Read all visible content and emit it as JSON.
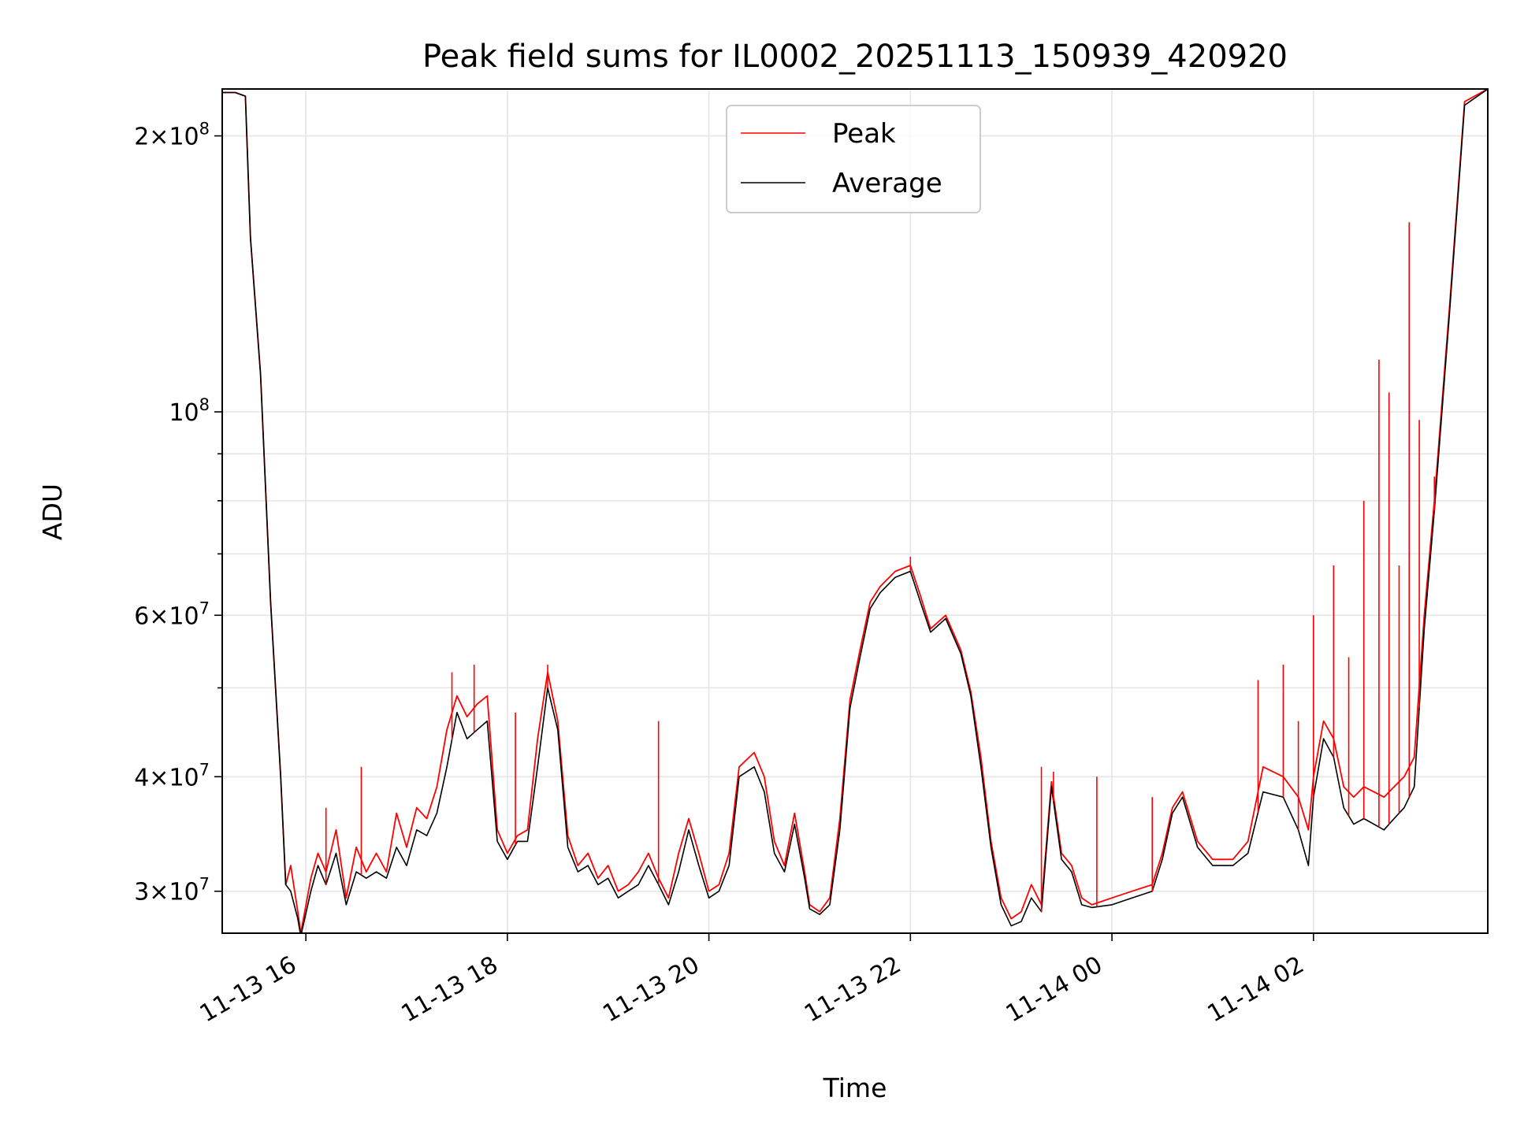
{
  "chart_data": {
    "type": "line",
    "title": "Peak field sums for IL0002_20251113_150939_420920",
    "xlabel": "Time",
    "ylabel": "ADU",
    "y_scale": "log",
    "ylim": [
      27000000,
      225000000
    ],
    "xlim_hours": [
      -0.83,
      11.73
    ],
    "x_start_date": "2025-11-13",
    "grid": true,
    "legend_position": "top-center",
    "x_tick_labels": [
      "11-13 16",
      "11-13 18",
      "11-13 20",
      "11-13 22",
      "11-14 00",
      "11-14 02"
    ],
    "x_tick_hours": [
      0,
      2,
      4,
      6,
      8,
      10
    ],
    "y_major_ticks": [
      {
        "value": 30000000,
        "mantissa": "3",
        "exp": "7"
      },
      {
        "value": 40000000,
        "mantissa": "4",
        "exp": "7"
      },
      {
        "value": 60000000,
        "mantissa": "6",
        "exp": "7"
      },
      {
        "value": 100000000,
        "mantissa": "",
        "exp": "8"
      },
      {
        "value": 200000000,
        "mantissa": "2",
        "exp": "8"
      }
    ],
    "y_minor_ticks": [
      50000000,
      70000000,
      80000000,
      90000000
    ],
    "series": [
      {
        "name": "Peak",
        "color": "#ff0000",
        "values": [
          [
            -0.83,
            223000000
          ],
          [
            -0.7,
            223000000
          ],
          [
            -0.6,
            221000000
          ],
          [
            -0.55,
            155000000
          ],
          [
            -0.45,
            110000000
          ],
          [
            -0.35,
            62000000
          ],
          [
            -0.25,
            40000000
          ],
          [
            -0.2,
            30500000
          ],
          [
            -0.15,
            32000000
          ],
          [
            -0.08,
            28500000
          ],
          [
            -0.05,
            27000000
          ],
          [
            0.05,
            31000000
          ],
          [
            0.12,
            33000000
          ],
          [
            0.2,
            31500000
          ],
          [
            0.3,
            35000000
          ],
          [
            0.4,
            29500000
          ],
          [
            0.5,
            33500000
          ],
          [
            0.6,
            31500000
          ],
          [
            0.7,
            33000000
          ],
          [
            0.8,
            31500000
          ],
          [
            0.9,
            36500000
          ],
          [
            1.0,
            33500000
          ],
          [
            1.1,
            37000000
          ],
          [
            1.2,
            36000000
          ],
          [
            1.3,
            39000000
          ],
          [
            1.4,
            45000000
          ],
          [
            1.5,
            49000000
          ],
          [
            1.6,
            46500000
          ],
          [
            1.7,
            48000000
          ],
          [
            1.8,
            49000000
          ],
          [
            1.9,
            35000000
          ],
          [
            2.0,
            33000000
          ],
          [
            2.1,
            34500000
          ],
          [
            2.2,
            35000000
          ],
          [
            2.3,
            44000000
          ],
          [
            2.4,
            52000000
          ],
          [
            2.5,
            46000000
          ],
          [
            2.6,
            34500000
          ],
          [
            2.7,
            32000000
          ],
          [
            2.8,
            33000000
          ],
          [
            2.9,
            31000000
          ],
          [
            3.0,
            32000000
          ],
          [
            3.1,
            30000000
          ],
          [
            3.2,
            30500000
          ],
          [
            3.3,
            31500000
          ],
          [
            3.4,
            33000000
          ],
          [
            3.5,
            31000000
          ],
          [
            3.6,
            29500000
          ],
          [
            3.7,
            33000000
          ],
          [
            3.8,
            36000000
          ],
          [
            3.9,
            33000000
          ],
          [
            4.0,
            30000000
          ],
          [
            4.1,
            30500000
          ],
          [
            4.2,
            33000000
          ],
          [
            4.3,
            41000000
          ],
          [
            4.45,
            42500000
          ],
          [
            4.55,
            40000000
          ],
          [
            4.65,
            34000000
          ],
          [
            4.75,
            32000000
          ],
          [
            4.85,
            36500000
          ],
          [
            4.95,
            31500000
          ],
          [
            5.0,
            29000000
          ],
          [
            5.1,
            28500000
          ],
          [
            5.2,
            29500000
          ],
          [
            5.3,
            36000000
          ],
          [
            5.4,
            48500000
          ],
          [
            5.5,
            55000000
          ],
          [
            5.6,
            62000000
          ],
          [
            5.7,
            64500000
          ],
          [
            5.85,
            67000000
          ],
          [
            6.0,
            68000000
          ],
          [
            6.1,
            63000000
          ],
          [
            6.2,
            58000000
          ],
          [
            6.35,
            60000000
          ],
          [
            6.5,
            55000000
          ],
          [
            6.6,
            49500000
          ],
          [
            6.7,
            42000000
          ],
          [
            6.8,
            34000000
          ],
          [
            6.9,
            29500000
          ],
          [
            7.0,
            28000000
          ],
          [
            7.1,
            28500000
          ],
          [
            7.2,
            30500000
          ],
          [
            7.3,
            29000000
          ],
          [
            7.4,
            39500000
          ],
          [
            7.5,
            33000000
          ],
          [
            7.6,
            32000000
          ],
          [
            7.7,
            29500000
          ],
          [
            7.8,
            29000000
          ],
          [
            8.0,
            29500000
          ],
          [
            8.2,
            30000000
          ],
          [
            8.4,
            30500000
          ],
          [
            8.5,
            33000000
          ],
          [
            8.6,
            37000000
          ],
          [
            8.7,
            38500000
          ],
          [
            8.85,
            34000000
          ],
          [
            9.0,
            32500000
          ],
          [
            9.2,
            32500000
          ],
          [
            9.35,
            34000000
          ],
          [
            9.5,
            41000000
          ],
          [
            9.7,
            40000000
          ],
          [
            9.85,
            38000000
          ],
          [
            9.95,
            35000000
          ],
          [
            10.0,
            40000000
          ],
          [
            10.1,
            46000000
          ],
          [
            10.2,
            44000000
          ],
          [
            10.3,
            39000000
          ],
          [
            10.4,
            38000000
          ],
          [
            10.5,
            39000000
          ],
          [
            10.6,
            38500000
          ],
          [
            10.7,
            38000000
          ],
          [
            10.8,
            39000000
          ],
          [
            10.9,
            40000000
          ],
          [
            11.0,
            42000000
          ],
          [
            11.1,
            60000000
          ],
          [
            11.2,
            80000000
          ],
          [
            11.35,
            130000000
          ],
          [
            11.5,
            218000000
          ],
          [
            11.73,
            225000000
          ]
        ]
      },
      {
        "name": "Average",
        "color": "#000000",
        "values": [
          [
            -0.83,
            223000000
          ],
          [
            -0.7,
            223000000
          ],
          [
            -0.6,
            221000000
          ],
          [
            -0.55,
            155000000
          ],
          [
            -0.45,
            110000000
          ],
          [
            -0.35,
            62000000
          ],
          [
            -0.25,
            40000000
          ],
          [
            -0.2,
            30500000
          ],
          [
            -0.15,
            30000000
          ],
          [
            -0.08,
            28000000
          ],
          [
            -0.05,
            26800000
          ],
          [
            0.05,
            30000000
          ],
          [
            0.12,
            32000000
          ],
          [
            0.2,
            30500000
          ],
          [
            0.3,
            33000000
          ],
          [
            0.4,
            29000000
          ],
          [
            0.5,
            31500000
          ],
          [
            0.6,
            31000000
          ],
          [
            0.7,
            31500000
          ],
          [
            0.8,
            31000000
          ],
          [
            0.9,
            33500000
          ],
          [
            1.0,
            32000000
          ],
          [
            1.1,
            35000000
          ],
          [
            1.2,
            34500000
          ],
          [
            1.3,
            36500000
          ],
          [
            1.4,
            41000000
          ],
          [
            1.5,
            47000000
          ],
          [
            1.6,
            44000000
          ],
          [
            1.7,
            45000000
          ],
          [
            1.8,
            46000000
          ],
          [
            1.9,
            34000000
          ],
          [
            2.0,
            32500000
          ],
          [
            2.1,
            34000000
          ],
          [
            2.2,
            34000000
          ],
          [
            2.3,
            41000000
          ],
          [
            2.4,
            50000000
          ],
          [
            2.5,
            45000000
          ],
          [
            2.6,
            33500000
          ],
          [
            2.7,
            31500000
          ],
          [
            2.8,
            32000000
          ],
          [
            2.9,
            30500000
          ],
          [
            3.0,
            31000000
          ],
          [
            3.1,
            29500000
          ],
          [
            3.2,
            30000000
          ],
          [
            3.3,
            30500000
          ],
          [
            3.4,
            32000000
          ],
          [
            3.5,
            30500000
          ],
          [
            3.6,
            29000000
          ],
          [
            3.7,
            31500000
          ],
          [
            3.8,
            35000000
          ],
          [
            3.9,
            32000000
          ],
          [
            4.0,
            29500000
          ],
          [
            4.1,
            30000000
          ],
          [
            4.2,
            32000000
          ],
          [
            4.3,
            40000000
          ],
          [
            4.45,
            41000000
          ],
          [
            4.55,
            38500000
          ],
          [
            4.65,
            33000000
          ],
          [
            4.75,
            31500000
          ],
          [
            4.85,
            35500000
          ],
          [
            4.95,
            31000000
          ],
          [
            5.0,
            28700000
          ],
          [
            5.1,
            28300000
          ],
          [
            5.2,
            29000000
          ],
          [
            5.3,
            35000000
          ],
          [
            5.4,
            47500000
          ],
          [
            5.5,
            54000000
          ],
          [
            5.6,
            61000000
          ],
          [
            5.7,
            63500000
          ],
          [
            5.85,
            66000000
          ],
          [
            6.0,
            67000000
          ],
          [
            6.1,
            62000000
          ],
          [
            6.2,
            57500000
          ],
          [
            6.35,
            59500000
          ],
          [
            6.5,
            54500000
          ],
          [
            6.6,
            49000000
          ],
          [
            6.7,
            41000000
          ],
          [
            6.8,
            33500000
          ],
          [
            6.9,
            29000000
          ],
          [
            7.0,
            27500000
          ],
          [
            7.1,
            27800000
          ],
          [
            7.2,
            29500000
          ],
          [
            7.3,
            28500000
          ],
          [
            7.4,
            39000000
          ],
          [
            7.5,
            32500000
          ],
          [
            7.6,
            31500000
          ],
          [
            7.7,
            29000000
          ],
          [
            7.8,
            28800000
          ],
          [
            8.0,
            29000000
          ],
          [
            8.2,
            29500000
          ],
          [
            8.4,
            30000000
          ],
          [
            8.5,
            32500000
          ],
          [
            8.6,
            36500000
          ],
          [
            8.7,
            38000000
          ],
          [
            8.85,
            33500000
          ],
          [
            9.0,
            32000000
          ],
          [
            9.2,
            32000000
          ],
          [
            9.35,
            33000000
          ],
          [
            9.5,
            38500000
          ],
          [
            9.7,
            38000000
          ],
          [
            9.85,
            35000000
          ],
          [
            9.95,
            32000000
          ],
          [
            10.0,
            38000000
          ],
          [
            10.1,
            44000000
          ],
          [
            10.2,
            42000000
          ],
          [
            10.3,
            37000000
          ],
          [
            10.4,
            35500000
          ],
          [
            10.5,
            36000000
          ],
          [
            10.6,
            35500000
          ],
          [
            10.7,
            35000000
          ],
          [
            10.8,
            36000000
          ],
          [
            10.9,
            37000000
          ],
          [
            11.0,
            39000000
          ],
          [
            11.1,
            58000000
          ],
          [
            11.2,
            78000000
          ],
          [
            11.35,
            128000000
          ],
          [
            11.5,
            216000000
          ],
          [
            11.73,
            225000000
          ]
        ]
      }
    ],
    "spikes": [
      [
        0.2,
        37000000
      ],
      [
        0.55,
        41000000
      ],
      [
        1.45,
        52000000
      ],
      [
        1.67,
        53000000
      ],
      [
        2.08,
        47000000
      ],
      [
        2.4,
        53000000
      ],
      [
        3.5,
        46000000
      ],
      [
        6.0,
        69500000
      ],
      [
        7.3,
        41000000
      ],
      [
        7.42,
        40500000
      ],
      [
        7.85,
        40000000
      ],
      [
        8.4,
        38000000
      ],
      [
        10.5,
        80000000
      ],
      [
        10.65,
        114000000
      ],
      [
        10.75,
        105000000
      ],
      [
        10.85,
        68000000
      ],
      [
        10.95,
        161000000
      ],
      [
        11.05,
        98000000
      ],
      [
        11.2,
        85000000
      ],
      [
        9.45,
        51000000
      ],
      [
        9.7,
        53000000
      ],
      [
        9.85,
        46000000
      ],
      [
        10.0,
        60000000
      ],
      [
        10.2,
        68000000
      ],
      [
        10.35,
        54000000
      ]
    ]
  }
}
